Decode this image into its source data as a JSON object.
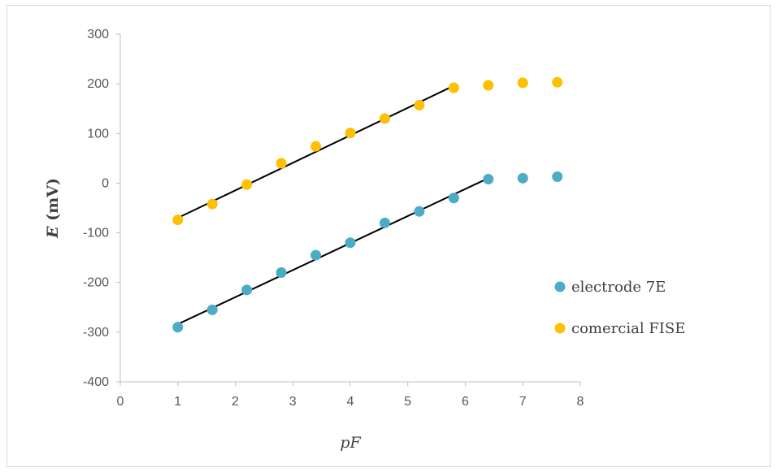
{
  "chart_data": {
    "type": "scatter",
    "xlabel": "pF",
    "ylabel_italic": "E",
    "ylabel_rest": " (mV)",
    "xlim": [
      0,
      8
    ],
    "ylim": [
      -400,
      300
    ],
    "xticks": [
      "0",
      "1",
      "2",
      "3",
      "4",
      "5",
      "6",
      "7",
      "8"
    ],
    "yticks": [
      "300",
      "200",
      "100",
      "0",
      "-100",
      "-200",
      "-300",
      "-400"
    ],
    "grid": false,
    "legend_position": "right",
    "series": [
      {
        "name": "electrode 7E",
        "color": "#4bacc6",
        "x": [
          1.0,
          1.6,
          2.2,
          2.8,
          3.4,
          4.0,
          4.6,
          5.2,
          5.8,
          6.4,
          7.0,
          7.6
        ],
        "y": [
          -290,
          -255,
          -215,
          -180,
          -145,
          -120,
          -80,
          -57,
          -30,
          8,
          10,
          13
        ],
        "trendline": {
          "x": [
            1.0,
            6.4
          ],
          "y": [
            -284,
            10
          ]
        }
      },
      {
        "name": "comercial FISE",
        "color": "#ffc000",
        "x": [
          1.0,
          1.6,
          2.2,
          2.8,
          3.4,
          4.0,
          4.6,
          5.2,
          5.8,
          6.4,
          7.0,
          7.6
        ],
        "y": [
          -74,
          -42,
          -3,
          40,
          74,
          101,
          130,
          157,
          192,
          197,
          202,
          203
        ],
        "trendline": {
          "x": [
            1.0,
            5.8
          ],
          "y": [
            -70,
            196
          ]
        }
      }
    ]
  }
}
